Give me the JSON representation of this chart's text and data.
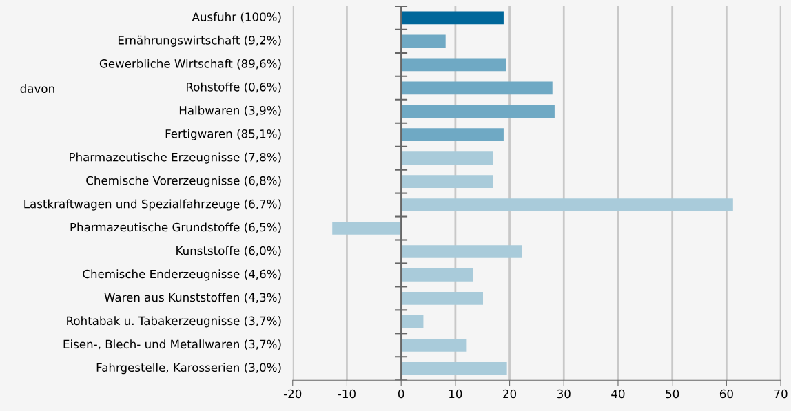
{
  "chart_data": {
    "type": "bar",
    "orientation": "horizontal",
    "categories": [
      "Ausfuhr (100%)",
      "Ernährungswirtschaft (9,2%)",
      "Gewerbliche Wirtschaft (89,6%)",
      "Rohstoffe (0,6%)",
      "Halbwaren (3,9%)",
      "Fertigwaren (85,1%)",
      "Pharmazeutische Erzeugnisse (7,8%)",
      "Chemische Vorerzeugnisse (6,8%)",
      "Lastkraftwagen und Spezialfahrzeuge (6,7%)",
      "Pharmazeutische Grundstoffe (6,5%)",
      "Kunststoffe (6,0%)",
      "Chemische Enderzeugnisse (4,6%)",
      "Waren aus Kunststoffen (4,3%)",
      "Rohtabak u. Tabakerzeugnisse (3,7%)",
      "Eisen-, Blech- und Metallwaren (3,7%)",
      "Fahrgestelle, Karosserien (3,0%)"
    ],
    "values": [
      18.9,
      8.2,
      19.4,
      27.9,
      28.3,
      18.9,
      16.9,
      17.0,
      61.2,
      -12.7,
      22.3,
      13.3,
      15.1,
      4.1,
      12.1,
      19.5
    ],
    "colors": [
      "#00679a",
      "#6fa9c4",
      "#6fa9c4",
      "#6fa9c4",
      "#6fa9c4",
      "#6fa9c4",
      "#a9cbda",
      "#a9cbda",
      "#a9cbda",
      "#a9cbda",
      "#a9cbda",
      "#a9cbda",
      "#a9cbda",
      "#a9cbda",
      "#a9cbda",
      "#a9cbda"
    ],
    "xlim": [
      -20,
      70
    ],
    "xticks": [
      -20,
      -10,
      0,
      10,
      20,
      30,
      40,
      50,
      60,
      70
    ],
    "grid": "x",
    "annotations": [
      "davon"
    ]
  }
}
